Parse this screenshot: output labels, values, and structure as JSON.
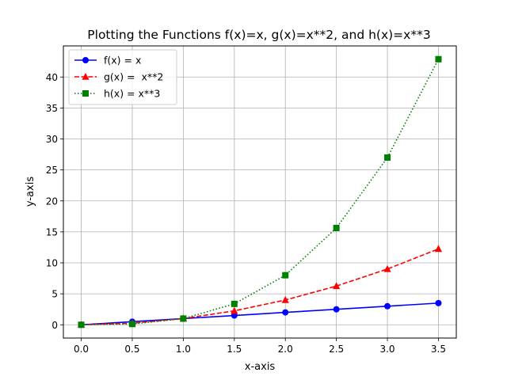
{
  "chart_data": {
    "type": "line",
    "title": "Plotting the Functions f(x)=x, g(x)=x**2, and h(x)=x**3",
    "xlabel": "x-axis",
    "ylabel": "y-axis",
    "x": [
      0.0,
      0.5,
      1.0,
      1.5,
      2.0,
      2.5,
      3.0,
      3.5
    ],
    "series": [
      {
        "name": "f(x) = x",
        "color": "#0000ff",
        "line_style": "solid",
        "marker": "circle",
        "values": [
          0,
          0.5,
          1,
          1.5,
          2,
          2.5,
          3,
          3.5
        ]
      },
      {
        "name": "g(x) =  x**2",
        "color": "#ff0000",
        "line_style": "dashed",
        "marker": "triangle",
        "values": [
          0,
          0.25,
          1,
          2.25,
          4,
          6.25,
          9,
          12.25
        ]
      },
      {
        "name": "h(x) = x**3",
        "color": "#008000",
        "line_style": "dotted",
        "marker": "square",
        "values": [
          0,
          0.125,
          1,
          3.375,
          8,
          15.625,
          27,
          42.875
        ]
      }
    ],
    "xlim": [
      -0.175,
      3.675
    ],
    "ylim": [
      -2.14,
      45.02
    ],
    "xticks": [
      "0.0",
      "0.5",
      "1.0",
      "1.5",
      "2.0",
      "2.5",
      "3.0",
      "3.5"
    ],
    "yticks": [
      "0",
      "5",
      "10",
      "15",
      "20",
      "25",
      "30",
      "35",
      "40"
    ],
    "grid": true,
    "legend_position": "upper-left"
  }
}
